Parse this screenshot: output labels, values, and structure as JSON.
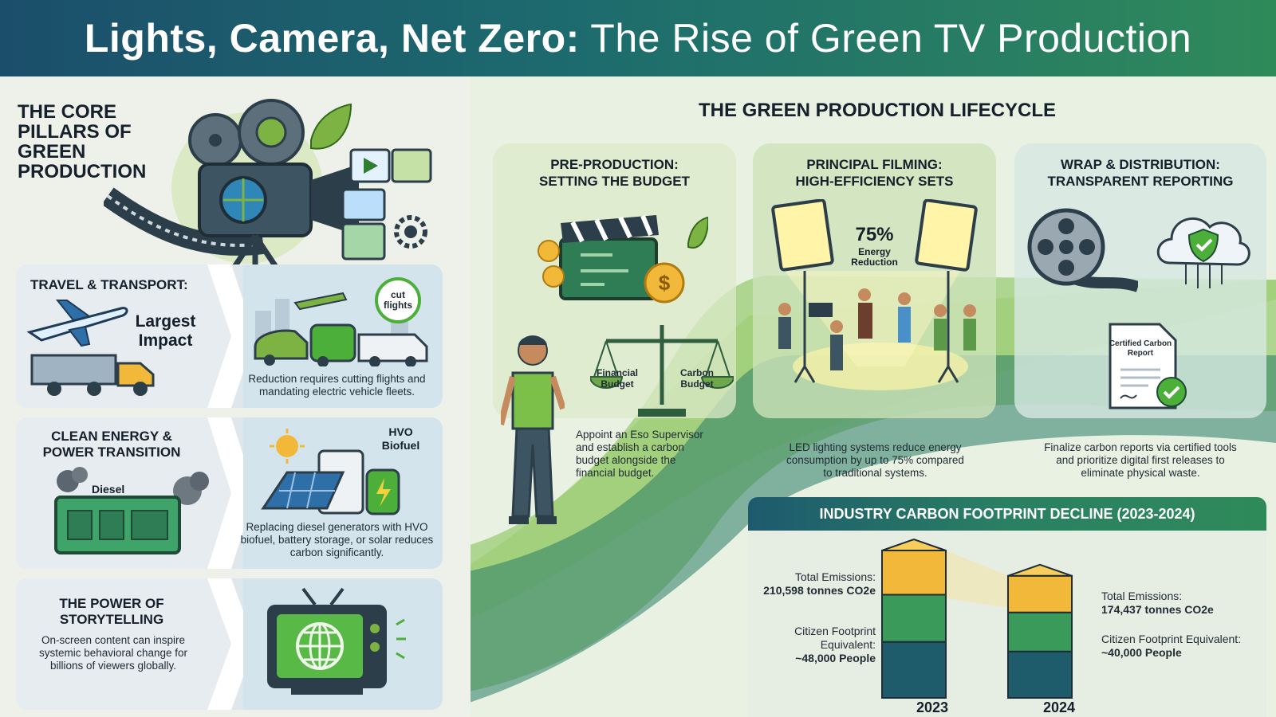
{
  "header": {
    "title_bold": "Lights, Camera, Net Zero:",
    "title_light": "The Rise of Green TV Production"
  },
  "pillars": {
    "title": "THE CORE PILLARS OF GREEN PRODUCTION",
    "cards": [
      {
        "heading": "TRAVEL & TRANSPORT:",
        "impact": "Largest Impact",
        "badge": "cut flights",
        "description": "Reduction requires cutting flights and mandating electric vehicle fleets."
      },
      {
        "heading": "CLEAN ENERGY & POWER TRANSITION",
        "generator_label": "Diesel",
        "fuel_label": "HVO Biofuel",
        "description": "Replacing diesel generators with HVO biofuel, battery storage, or solar reduces carbon significantly."
      },
      {
        "heading": "THE POWER OF STORYTELLING",
        "description": "On-screen content can inspire systemic behavioral change for billions of viewers globally."
      }
    ]
  },
  "lifecycle": {
    "title": "THE GREEN PRODUCTION LIFECYCLE",
    "stages": [
      {
        "heading_line1": "PRE-PRODUCTION:",
        "heading_line2": "SETTING THE BUDGET",
        "scale_left": "Financial Budget",
        "scale_right": "Carbon Budget",
        "description": "Appoint an Eso Supervisor and establish a carbon budget alongside the financial budget."
      },
      {
        "heading_line1": "PRINCIPAL FILMING:",
        "heading_line2": "HIGH-EFFICIENCY SETS",
        "stat_value": "75%",
        "stat_label": "Energy Reduction",
        "description": "LED lighting systems reduce energy consumption by up to 75% compared to traditional systems."
      },
      {
        "heading_line1": "WRAP & DISTRIBUTION:",
        "heading_line2": "TRANSPARENT REPORTING",
        "doc_label": "Certified Carbon Report",
        "description": "Finalize carbon reports via certified tools and prioritize digital first releases to eliminate physical waste."
      }
    ]
  },
  "footprint": {
    "title": "INDUSTRY CARBON FOOTPRINT DECLINE (2023-2024)",
    "years": [
      {
        "year": "2023",
        "emissions_label": "Total Emissions:",
        "emissions_value": "210,598 tonnes CO2e",
        "citizen_label": "Citizen Footprint Equivalent:",
        "citizen_value": "~48,000 People"
      },
      {
        "year": "2024",
        "emissions_label": "Total Emissions:",
        "emissions_value": "174,437 tonnes CO2e",
        "citizen_label": "Citizen Footprint Equivalent:",
        "citizen_value": "~40,000 People"
      }
    ]
  },
  "colors": {
    "header_start": "#1b4e6b",
    "header_end": "#2f8a5a",
    "accent_green": "#4caf3a",
    "bar_yellow": "#f2b83a",
    "bar_green": "#3a9a5a",
    "bar_teal": "#1f5c6b"
  }
}
